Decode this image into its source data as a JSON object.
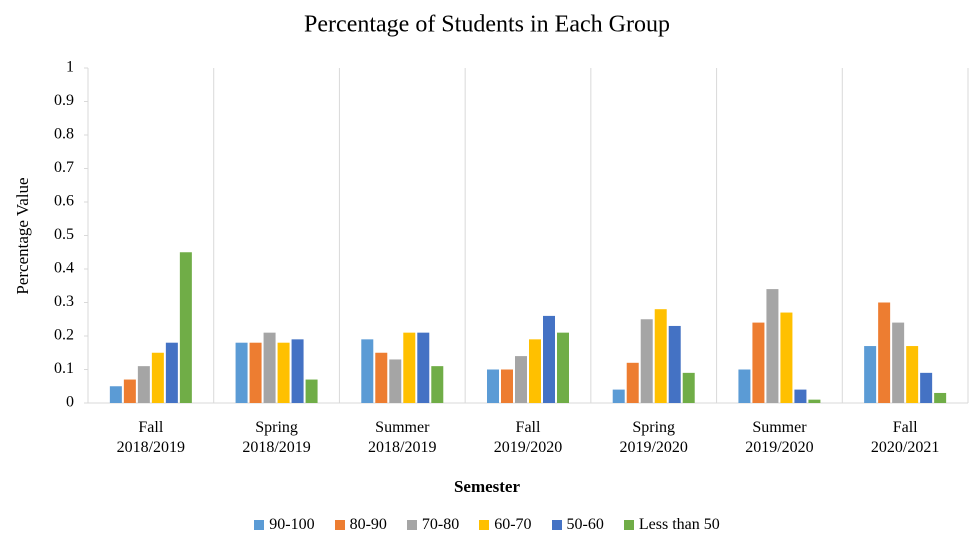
{
  "chart_data": {
    "type": "bar",
    "title": "Percentage of Students in Each Group",
    "x_label": "Semester",
    "y_label": "Percentage Value",
    "categories": [
      "Fall 2018/2019",
      "Spring 2018/2019",
      "Summer 2018/2019",
      "Fall 2019/2020",
      "Spring 2019/2020",
      "Summer 2019/2020",
      "Fall 2020/2021"
    ],
    "series": [
      {
        "name": "90-100",
        "color": "#5b9bd5",
        "values": [
          0.05,
          0.18,
          0.19,
          0.1,
          0.04,
          0.1,
          0.17
        ]
      },
      {
        "name": "80-90",
        "color": "#ed7d31",
        "values": [
          0.07,
          0.18,
          0.15,
          0.1,
          0.12,
          0.24,
          0.3
        ]
      },
      {
        "name": "70-80",
        "color": "#a5a5a5",
        "values": [
          0.11,
          0.21,
          0.13,
          0.14,
          0.25,
          0.34,
          0.24
        ]
      },
      {
        "name": "60-70",
        "color": "#ffc000",
        "values": [
          0.15,
          0.18,
          0.21,
          0.19,
          0.28,
          0.27,
          0.17
        ]
      },
      {
        "name": "50-60",
        "color": "#4472c4",
        "values": [
          0.18,
          0.19,
          0.21,
          0.26,
          0.23,
          0.04,
          0.09
        ]
      },
      {
        "name": "Less than 50",
        "color": "#70ad47",
        "values": [
          0.45,
          0.07,
          0.11,
          0.21,
          0.09,
          0.01,
          0.03
        ]
      }
    ],
    "ylim": [
      0,
      1
    ],
    "yticks": [
      0,
      0.1,
      0.2,
      0.3,
      0.4,
      0.5,
      0.6,
      0.7,
      0.8,
      0.9,
      1
    ],
    "legend": "bottom"
  }
}
